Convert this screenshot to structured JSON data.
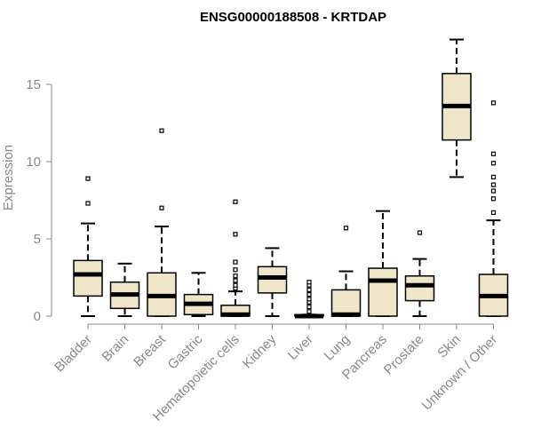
{
  "chart_data": {
    "type": "box",
    "title": "ENSG00000188508 - KRTDAP",
    "xlabel": "",
    "ylabel": "Expression",
    "ylim": [
      0,
      18
    ],
    "yticks": [
      0,
      5,
      10,
      15
    ],
    "grid": false,
    "colors": {
      "box_fill": "#efe6c9",
      "box_stroke": "#000000",
      "axis": "#888888"
    },
    "categories": [
      "Bladder",
      "Brain",
      "Breast",
      "Gastric",
      "Hematopoietic cells",
      "Kidney",
      "Liver",
      "Lung",
      "Pancreas",
      "Prostate",
      "Skin",
      "Unknown / Other"
    ],
    "boxes": [
      {
        "min": 0.0,
        "q1": 1.3,
        "median": 2.7,
        "q3": 3.6,
        "max": 6.0,
        "outliers": [
          7.3,
          8.9
        ]
      },
      {
        "min": 0.0,
        "q1": 0.5,
        "median": 1.4,
        "q3": 2.2,
        "max": 3.4,
        "outliers": []
      },
      {
        "min": 0.0,
        "q1": 0.0,
        "median": 1.3,
        "q3": 2.8,
        "max": 5.8,
        "outliers": [
          7.0,
          12.0
        ]
      },
      {
        "min": 0.0,
        "q1": 0.1,
        "median": 0.8,
        "q3": 1.4,
        "max": 2.8,
        "outliers": []
      },
      {
        "min": 0.0,
        "q1": 0.0,
        "median": 0.1,
        "q3": 0.7,
        "max": 1.6,
        "outliers": [
          1.8,
          2.0,
          2.3,
          2.6,
          3.0,
          3.5,
          5.3,
          7.4
        ]
      },
      {
        "min": 0.0,
        "q1": 1.5,
        "median": 2.5,
        "q3": 3.2,
        "max": 4.4,
        "outliers": []
      },
      {
        "min": 0.0,
        "q1": 0.0,
        "median": 0.0,
        "q3": 0.1,
        "max": 0.1,
        "outliers": [
          0.3,
          0.6,
          0.9,
          1.1,
          1.4,
          1.7,
          2.0,
          2.2
        ]
      },
      {
        "min": 0.0,
        "q1": 0.0,
        "median": 0.1,
        "q3": 1.7,
        "max": 2.9,
        "outliers": [
          5.7
        ]
      },
      {
        "min": 0.0,
        "q1": 0.0,
        "median": 2.3,
        "q3": 3.1,
        "max": 6.8,
        "outliers": []
      },
      {
        "min": 0.0,
        "q1": 1.0,
        "median": 2.0,
        "q3": 2.6,
        "max": 3.7,
        "outliers": [
          5.4
        ]
      },
      {
        "min": 9.0,
        "q1": 11.4,
        "median": 13.6,
        "q3": 15.7,
        "max": 17.9,
        "outliers": []
      },
      {
        "min": 0.0,
        "q1": 0.0,
        "median": 1.3,
        "q3": 2.7,
        "max": 6.2,
        "outliers": [
          6.7,
          7.6,
          8.1,
          8.5,
          9.0,
          9.9,
          10.5,
          13.8
        ]
      }
    ]
  }
}
